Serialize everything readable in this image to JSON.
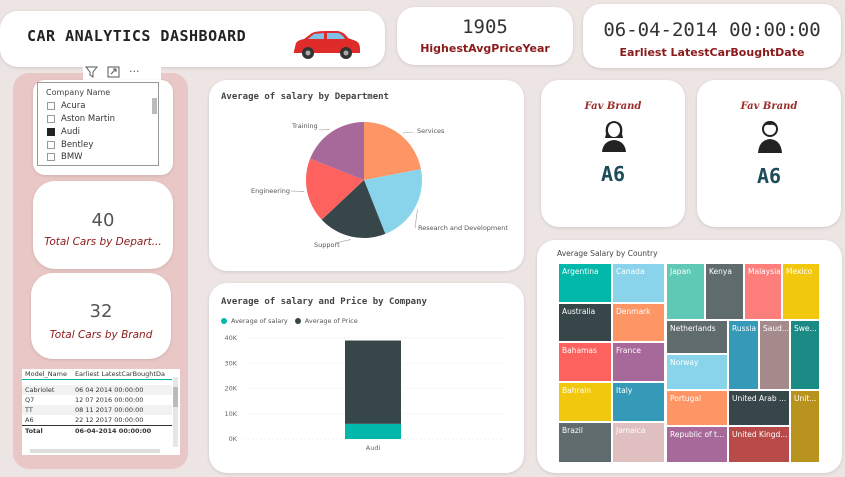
{
  "header": {
    "title": "CAR ANALYTICS DASHBOARD",
    "car_icon": "car-icon"
  },
  "kpis": [
    {
      "value": "1905",
      "label": "HighestAvgPriceYear"
    },
    {
      "value": "06-04-2014 00:00:00",
      "label": "Earliest LatestCarBoughtDate"
    }
  ],
  "slicer": {
    "title": "Company Name",
    "items": [
      {
        "label": "Acura",
        "checked": false
      },
      {
        "label": "Aston Martin",
        "checked": false
      },
      {
        "label": "Audi",
        "checked": true
      },
      {
        "label": "Bentley",
        "checked": false
      },
      {
        "label": "BMW",
        "checked": false
      }
    ]
  },
  "cards": [
    {
      "value": "40",
      "label": "Total Cars by Depart..."
    },
    {
      "value": "32",
      "label": "Total Cars by Brand"
    }
  ],
  "mini_table": {
    "headers": [
      "Model_Name",
      "Earliest LatestCarBoughtDa"
    ],
    "rows": [
      [
        "Cabriolet",
        "06 04 2014 00:00:00"
      ],
      [
        "Q7",
        "12 07 2016 00:00:00"
      ],
      [
        "TT",
        "08 11 2017 00:00:00"
      ],
      [
        "A6",
        "22 12 2017 00:00:00"
      ]
    ],
    "total": [
      "Total",
      "06-04-2014 00:00:00"
    ]
  },
  "pie_chart": {
    "title": "Average of salary by Department",
    "chart_data": {
      "type": "pie",
      "categories": [
        "Services",
        "Research and Development",
        "Support",
        "Engineering",
        "Training"
      ],
      "values": [
        22,
        22,
        19,
        18,
        19
      ],
      "colors": [
        "#fd9565",
        "#8ad4eb",
        "#374649",
        "#fd625e",
        "#a66999"
      ]
    }
  },
  "bar_chart": {
    "title": "Average of salary and Price by Company",
    "legend": [
      "Average of salary",
      "Average of Price"
    ],
    "legend_colors": [
      "#01b8aa",
      "#374649"
    ],
    "chart_data": {
      "type": "bar",
      "categories": [
        "Audi"
      ],
      "series": [
        {
          "name": "Average of salary",
          "values": [
            6000
          ]
        },
        {
          "name": "Average of Price",
          "values": [
            33000
          ]
        }
      ],
      "yticks": [
        "40K",
        "30K",
        "20K",
        "10K",
        "0K"
      ],
      "ylim": [
        0,
        40000
      ]
    }
  },
  "fav_brands": [
    {
      "title": "Fav Brand",
      "value": "A6",
      "icon": "female-user-icon"
    },
    {
      "title": "Fav Brand",
      "value": "A6",
      "icon": "male-user-icon"
    }
  ],
  "treemap": {
    "title": "Average Salary by Country",
    "cells": [
      {
        "label": "Argentina",
        "color": "#01b8aa"
      },
      {
        "label": "Canada",
        "color": "#8ad4eb"
      },
      {
        "label": "Japan",
        "color": "#5fc9b6"
      },
      {
        "label": "Kenya",
        "color": "#5f6b6d"
      },
      {
        "label": "Malaysia",
        "color": "#fd7e7b"
      },
      {
        "label": "Mexico",
        "color": "#f2c80f"
      },
      {
        "label": "Australia",
        "color": "#374649"
      },
      {
        "label": "Denmark",
        "color": "#fd9565"
      },
      {
        "label": "Netherlands",
        "color": "#5f6b6d"
      },
      {
        "label": "Russia",
        "color": "#3599b8"
      },
      {
        "label": "Saud...",
        "color": "#a48a8a"
      },
      {
        "label": "Swe...",
        "color": "#1b8a84"
      },
      {
        "label": "Bahamas",
        "color": "#fd625e"
      },
      {
        "label": "France",
        "color": "#a66999"
      },
      {
        "label": "Norway",
        "color": "#8ad4eb"
      },
      {
        "label": "Bahrain",
        "color": "#f2c80f"
      },
      {
        "label": "Italy",
        "color": "#3599b8"
      },
      {
        "label": "Portugal",
        "color": "#fd9565"
      },
      {
        "label": "United Arab ...",
        "color": "#374649"
      },
      {
        "label": "Unit...",
        "color": "#b8941e"
      },
      {
        "label": "Brazil",
        "color": "#5f6b6d"
      },
      {
        "label": "Jamaica",
        "color": "#dfbfbf"
      },
      {
        "label": "Republic of t...",
        "color": "#a66999"
      },
      {
        "label": "United Kingd...",
        "color": "#b94a4a"
      }
    ]
  }
}
